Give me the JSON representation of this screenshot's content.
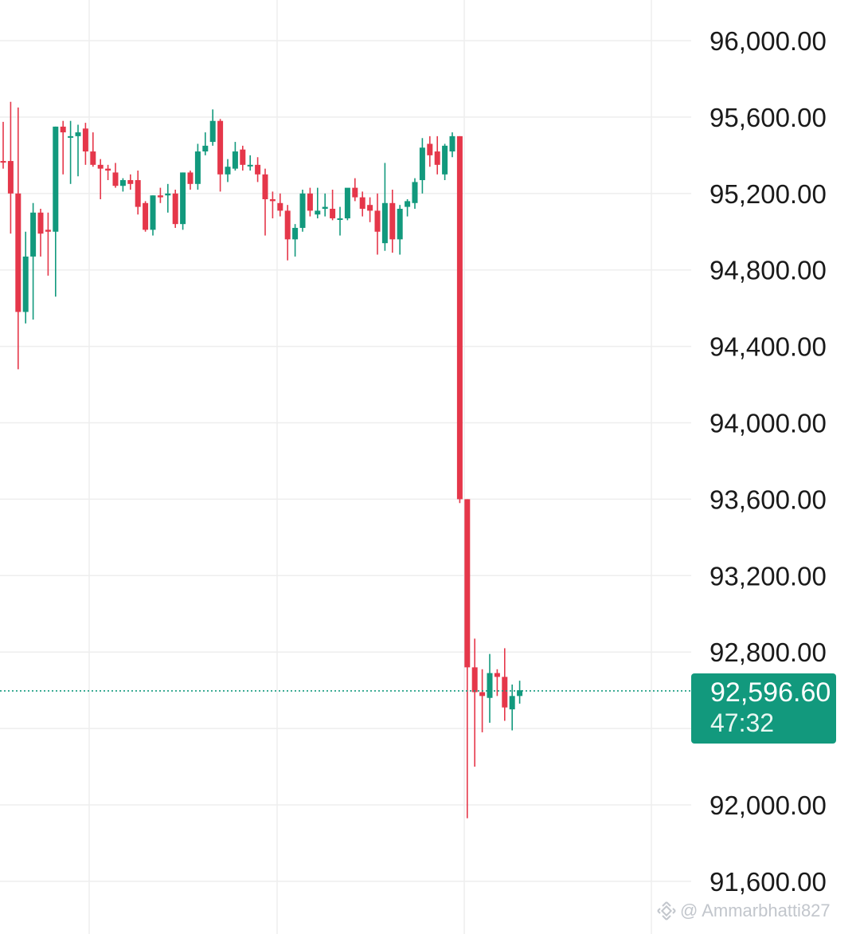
{
  "chart_data": {
    "type": "candlestick",
    "y_axis_ticks": [
      "96,000.00",
      "95,600.00",
      "95,200.00",
      "94,800.00",
      "94,400.00",
      "94,000.00",
      "93,600.00",
      "93,200.00",
      "92,800.00",
      "92,000.00",
      "91,600.00"
    ],
    "y_axis_values": [
      96000,
      95600,
      95200,
      94800,
      94400,
      94000,
      93600,
      93200,
      92800,
      92000,
      91600
    ],
    "ylim": [
      91350,
      96200
    ],
    "grid": true,
    "current_price": 92596.6,
    "candles": [
      [
        95370,
        95575,
        95330,
        95365
      ],
      [
        95370,
        95680,
        94990,
        95200
      ],
      [
        95200,
        95650,
        94280,
        94580
      ],
      [
        94580,
        95000,
        94520,
        94870
      ],
      [
        94870,
        95150,
        94540,
        95100
      ],
      [
        95100,
        95120,
        94870,
        94990
      ],
      [
        95010,
        95100,
        94770,
        95000
      ],
      [
        95000,
        95550,
        94660,
        95550
      ],
      [
        95550,
        95580,
        95300,
        95520
      ],
      [
        95500,
        95580,
        95250,
        95500
      ],
      [
        95500,
        95560,
        95290,
        95520
      ],
      [
        95540,
        95570,
        95350,
        95420
      ],
      [
        95420,
        95520,
        95340,
        95350
      ],
      [
        95350,
        95380,
        95170,
        95330
      ],
      [
        95330,
        95350,
        95270,
        95320
      ],
      [
        95310,
        95360,
        95230,
        95240
      ],
      [
        95240,
        95280,
        95210,
        95270
      ],
      [
        95270,
        95300,
        95220,
        95250
      ],
      [
        95270,
        95320,
        95090,
        95130
      ],
      [
        95150,
        95160,
        95000,
        95010
      ],
      [
        95010,
        95190,
        94980,
        95190
      ],
      [
        95190,
        95230,
        95150,
        95180
      ],
      [
        95190,
        95250,
        95100,
        95200
      ],
      [
        95200,
        95220,
        95020,
        95040
      ],
      [
        95040,
        95310,
        95010,
        95310
      ],
      [
        95310,
        95320,
        95220,
        95250
      ],
      [
        95250,
        95460,
        95220,
        95420
      ],
      [
        95420,
        95520,
        95400,
        95450
      ],
      [
        95470,
        95640,
        95450,
        95580
      ],
      [
        95580,
        95590,
        95210,
        95300
      ],
      [
        95300,
        95380,
        95260,
        95340
      ],
      [
        95330,
        95470,
        95320,
        95420
      ],
      [
        95430,
        95450,
        95320,
        95350
      ],
      [
        95350,
        95400,
        95320,
        95350
      ],
      [
        95350,
        95390,
        95260,
        95300
      ],
      [
        95300,
        95330,
        94980,
        95170
      ],
      [
        95170,
        95210,
        95070,
        95160
      ],
      [
        95150,
        95200,
        95080,
        95110
      ],
      [
        95110,
        95140,
        94850,
        94960
      ],
      [
        94960,
        95040,
        94870,
        95020
      ],
      [
        95020,
        95220,
        95000,
        95200
      ],
      [
        95200,
        95230,
        95080,
        95110
      ],
      [
        95090,
        95230,
        95070,
        95110
      ],
      [
        95120,
        95200,
        95080,
        95130
      ],
      [
        95120,
        95220,
        95060,
        95070
      ],
      [
        95070,
        95130,
        94980,
        95070
      ],
      [
        95070,
        95220,
        95060,
        95230
      ],
      [
        95230,
        95280,
        95160,
        95180
      ],
      [
        95180,
        95210,
        95080,
        95120
      ],
      [
        95140,
        95180,
        95050,
        95110
      ],
      [
        95110,
        95200,
        94880,
        95000
      ],
      [
        94940,
        95360,
        94900,
        95150
      ],
      [
        95150,
        95220,
        94890,
        94960
      ],
      [
        94960,
        95140,
        94880,
        95120
      ],
      [
        95130,
        95170,
        95080,
        95160
      ],
      [
        95150,
        95280,
        95120,
        95260
      ],
      [
        95270,
        95490,
        95200,
        95440
      ],
      [
        95460,
        95500,
        95340,
        95400
      ],
      [
        95420,
        95500,
        95300,
        95350
      ],
      [
        95300,
        95460,
        95270,
        95450
      ],
      [
        95420,
        95520,
        95390,
        95500
      ],
      [
        95500,
        95500,
        93580,
        93600
      ],
      [
        93600,
        93600,
        91930,
        92720
      ],
      [
        92720,
        92870,
        92200,
        92590
      ],
      [
        92590,
        92710,
        92380,
        92570
      ],
      [
        92560,
        92790,
        92430,
        92690
      ],
      [
        92690,
        92710,
        92570,
        92670
      ],
      [
        92670,
        92820,
        92440,
        92510
      ],
      [
        92500,
        92630,
        92390,
        92570
      ],
      [
        92570,
        92650,
        92530,
        92600
      ]
    ]
  },
  "price_tag": {
    "price": "92,596.60",
    "countdown": "47:32",
    "color": "#12997d"
  },
  "colors": {
    "up": "#12997d",
    "down": "#e5374a",
    "grid": "#eeeeee",
    "axis_text": "#1a1a1a"
  },
  "watermark": {
    "text": "@ Ammarbhatti827",
    "icon": "binance-logo-icon"
  }
}
